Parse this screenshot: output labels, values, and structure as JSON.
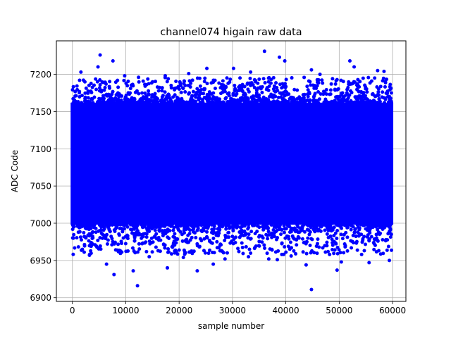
{
  "chart_data": {
    "type": "scatter",
    "title": "channel074 higain raw data",
    "xlabel": "sample number",
    "ylabel": "ADC Code",
    "xlim": [
      -3000,
      62500
    ],
    "ylim": [
      6895,
      7245
    ],
    "xticks": [
      0,
      10000,
      20000,
      30000,
      40000,
      50000,
      60000
    ],
    "xtick_labels": [
      "0",
      "10000",
      "20000",
      "30000",
      "40000",
      "50000",
      "60000"
    ],
    "yticks": [
      6900,
      6950,
      7000,
      7050,
      7100,
      7150,
      7200
    ],
    "ytick_labels": [
      "6900",
      "6950",
      "7000",
      "7050",
      "7100",
      "7150",
      "7200"
    ],
    "grid": true,
    "series_color": "#0000ff",
    "band": {
      "x_start": 0,
      "x_end": 59800,
      "dense_low": 6998,
      "dense_high": 7162
    },
    "outliers": [
      [
        1600,
        7203
      ],
      [
        5200,
        7226
      ],
      [
        7600,
        7218
      ],
      [
        4800,
        7210
      ],
      [
        12400,
        7196
      ],
      [
        17400,
        7198
      ],
      [
        25200,
        7208
      ],
      [
        30200,
        7208
      ],
      [
        36000,
        7231
      ],
      [
        38800,
        7223
      ],
      [
        39800,
        7218
      ],
      [
        44800,
        7206
      ],
      [
        52000,
        7218
      ],
      [
        52800,
        7210
      ],
      [
        57200,
        7205
      ],
      [
        58400,
        7204
      ],
      [
        21800,
        7201
      ],
      [
        33400,
        7203
      ],
      [
        46400,
        7200
      ],
      [
        9800,
        7198
      ],
      [
        7800,
        6931
      ],
      [
        11400,
        6936
      ],
      [
        12200,
        6916
      ],
      [
        17800,
        6940
      ],
      [
        23400,
        6936
      ],
      [
        36800,
        6952
      ],
      [
        43800,
        6944
      ],
      [
        44800,
        6911
      ],
      [
        49600,
        6937
      ],
      [
        50400,
        6948
      ],
      [
        59400,
        6950
      ],
      [
        3200,
        6957
      ],
      [
        6400,
        6945
      ],
      [
        14400,
        6955
      ],
      [
        20800,
        6954
      ],
      [
        26400,
        6945
      ],
      [
        28600,
        6952
      ],
      [
        33000,
        6955
      ],
      [
        38400,
        6951
      ],
      [
        41000,
        6956
      ],
      [
        48200,
        6958
      ],
      [
        55600,
        6947
      ],
      [
        31200,
        6962
      ],
      [
        19200,
        6960
      ],
      [
        54200,
        6958
      ]
    ]
  }
}
